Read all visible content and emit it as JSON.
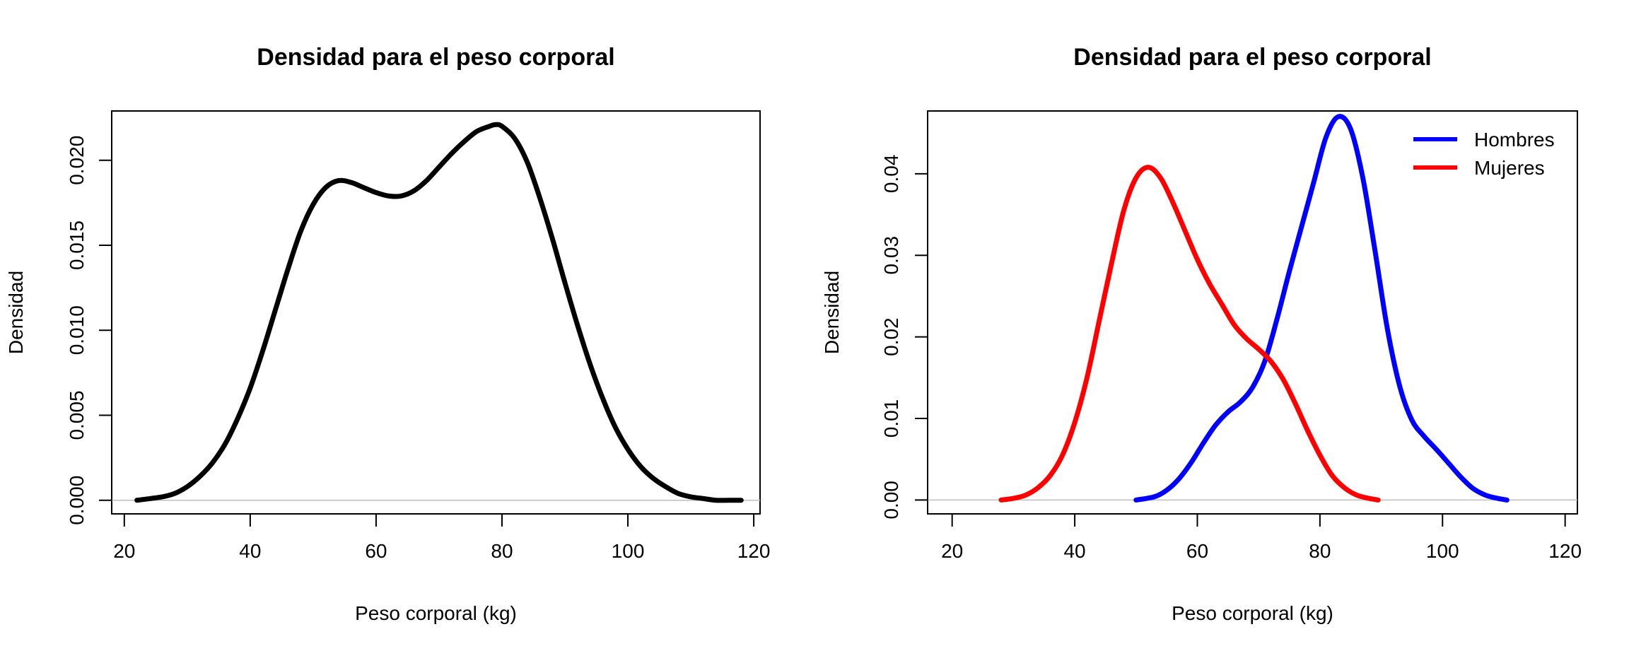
{
  "chart_data": [
    {
      "type": "line",
      "title": "Densidad para el peso corporal",
      "xlabel": "Peso corporal (kg)",
      "ylabel": "Densidad",
      "xlim": [
        18,
        121
      ],
      "ylim": [
        -0.0008,
        0.0229
      ],
      "x_ticks": [
        20,
        40,
        60,
        80,
        100,
        120
      ],
      "x_tick_labels": [
        "20",
        "40",
        "60",
        "80",
        "100",
        "120"
      ],
      "y_ticks": [
        0,
        0.005,
        0.01,
        0.015,
        0.02
      ],
      "y_tick_labels": [
        "0.000",
        "0.005",
        "0.010",
        "0.015",
        "0.020"
      ],
      "grid": false,
      "zero_line": true,
      "series": [
        {
          "color": "#000000",
          "x": [
            22,
            26,
            28,
            30,
            32,
            34,
            36,
            38,
            40,
            42,
            44,
            46,
            48,
            50,
            52,
            54,
            56,
            58,
            60,
            62,
            64,
            66,
            68,
            70,
            72,
            74,
            76,
            78,
            79,
            80,
            82,
            84,
            86,
            88,
            90,
            92,
            94,
            96,
            98,
            100,
            102,
            104,
            106,
            108,
            110,
            112,
            114,
            116,
            118
          ],
          "y": [
            0.0,
            0.0002,
            0.0004,
            0.0008,
            0.0014,
            0.0022,
            0.0033,
            0.0048,
            0.0066,
            0.0088,
            0.0112,
            0.0136,
            0.0158,
            0.0174,
            0.0184,
            0.0188,
            0.0187,
            0.0184,
            0.0181,
            0.0179,
            0.0179,
            0.0182,
            0.0188,
            0.0196,
            0.0204,
            0.0211,
            0.0217,
            0.022,
            0.0221,
            0.022,
            0.0213,
            0.0199,
            0.0178,
            0.0154,
            0.0128,
            0.0103,
            0.008,
            0.006,
            0.0043,
            0.003,
            0.002,
            0.0013,
            0.0008,
            0.0004,
            0.0002,
            0.0001,
            0.0,
            0.0,
            0.0
          ]
        }
      ]
    },
    {
      "type": "line",
      "title": "Densidad para el peso corporal",
      "xlabel": "Peso corporal (kg)",
      "ylabel": "Densidad",
      "xlim": [
        16,
        122
      ],
      "ylim": [
        -0.0017,
        0.0477
      ],
      "x_ticks": [
        20,
        40,
        60,
        80,
        100,
        120
      ],
      "x_tick_labels": [
        "20",
        "40",
        "60",
        "80",
        "100",
        "120"
      ],
      "y_ticks": [
        0,
        0.01,
        0.02,
        0.03,
        0.04
      ],
      "y_tick_labels": [
        "0.00",
        "0.01",
        "0.02",
        "0.03",
        "0.04"
      ],
      "grid": false,
      "zero_line": true,
      "legend_position": "top-right",
      "series": [
        {
          "name": "Hombres",
          "color": "#0000ff",
          "x": [
            50,
            53,
            55,
            57,
            59,
            61,
            63,
            65,
            67,
            69,
            71,
            73,
            75,
            77,
            79,
            81,
            83,
            85,
            87,
            89,
            91,
            93,
            95,
            97,
            99,
            101,
            103,
            105,
            107,
            109,
            110.5
          ],
          "y": [
            0.0,
            0.0004,
            0.0012,
            0.0026,
            0.0046,
            0.007,
            0.0092,
            0.0108,
            0.012,
            0.0138,
            0.017,
            0.0222,
            0.028,
            0.0335,
            0.039,
            0.0445,
            0.047,
            0.0455,
            0.0395,
            0.0305,
            0.021,
            0.014,
            0.0098,
            0.0078,
            0.0062,
            0.0045,
            0.0028,
            0.0014,
            0.0006,
            0.0002,
            0.0
          ]
        },
        {
          "name": "Mujeres",
          "color": "#ff0000",
          "x": [
            28,
            30,
            32,
            34,
            36,
            38,
            40,
            42,
            44,
            46,
            48,
            50,
            52,
            54,
            56,
            58,
            60,
            62,
            64,
            66,
            68,
            70,
            72,
            74,
            76,
            78,
            80,
            82,
            84,
            86,
            88,
            89.5
          ],
          "y": [
            0.0,
            0.0002,
            0.0006,
            0.0015,
            0.003,
            0.0055,
            0.0095,
            0.015,
            0.022,
            0.029,
            0.0355,
            0.0395,
            0.0408,
            0.0395,
            0.0365,
            0.033,
            0.0295,
            0.0265,
            0.024,
            0.0215,
            0.0198,
            0.0185,
            0.017,
            0.0148,
            0.0118,
            0.0085,
            0.0055,
            0.003,
            0.0015,
            0.0006,
            0.0002,
            0.0
          ]
        }
      ]
    }
  ]
}
